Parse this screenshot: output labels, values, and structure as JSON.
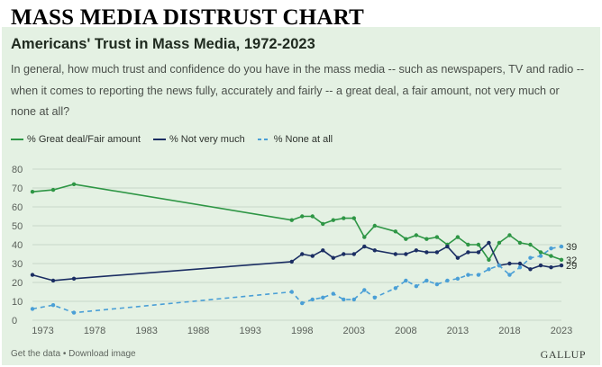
{
  "banner": "MASS MEDIA DISTRUST CHART",
  "footer": {
    "left": "Get the data • Download image",
    "right": "GALLUP"
  },
  "colors": {
    "great_fair": "#2e9645",
    "not_very": "#1b2e63",
    "none": "#4a9fd6",
    "grid": "#c9d8c8",
    "axis_text": "#5a605a",
    "card_bg": "#e4f1e3"
  },
  "chart_data": {
    "type": "line",
    "title": "Americans' Trust in Mass Media, 1972-2023",
    "subtitle": "In general, how much trust and confidence do you have in the mass media -- such as newspapers, TV and radio -- when it comes to reporting the news fully, accurately and fairly -- a great deal, a fair amount, not very much or none at all?",
    "xlabel": "",
    "ylabel": "",
    "xlim": [
      1972,
      2023
    ],
    "ylim": [
      0,
      80
    ],
    "xticks": [
      1973,
      1978,
      1983,
      1988,
      1993,
      1998,
      2003,
      2008,
      2013,
      2018,
      2023
    ],
    "yticks": [
      0,
      10,
      20,
      30,
      40,
      50,
      60,
      70,
      80
    ],
    "grid": true,
    "legend_position": "top-left",
    "series": [
      {
        "name": "% Great deal/Fair amount",
        "color": "#2e9645",
        "dash": "solid",
        "end_label": "32",
        "points": [
          [
            1972,
            68
          ],
          [
            1974,
            69
          ],
          [
            1976,
            72
          ],
          [
            1997,
            53
          ],
          [
            1998,
            55
          ],
          [
            1999,
            55
          ],
          [
            2000,
            51
          ],
          [
            2001,
            53
          ],
          [
            2002,
            54
          ],
          [
            2003,
            54
          ],
          [
            2004,
            44
          ],
          [
            2005,
            50
          ],
          [
            2007,
            47
          ],
          [
            2008,
            43
          ],
          [
            2009,
            45
          ],
          [
            2010,
            43
          ],
          [
            2011,
            44
          ],
          [
            2012,
            40
          ],
          [
            2013,
            44
          ],
          [
            2014,
            40
          ],
          [
            2015,
            40
          ],
          [
            2016,
            32
          ],
          [
            2017,
            41
          ],
          [
            2018,
            45
          ],
          [
            2019,
            41
          ],
          [
            2020,
            40
          ],
          [
            2021,
            36
          ],
          [
            2022,
            34
          ],
          [
            2023,
            32
          ]
        ]
      },
      {
        "name": "% Not very much",
        "color": "#1b2e63",
        "dash": "solid",
        "end_label": "29",
        "points": [
          [
            1972,
            24
          ],
          [
            1974,
            21
          ],
          [
            1976,
            22
          ],
          [
            1997,
            31
          ],
          [
            1998,
            35
          ],
          [
            1999,
            34
          ],
          [
            2000,
            37
          ],
          [
            2001,
            33
          ],
          [
            2002,
            35
          ],
          [
            2003,
            35
          ],
          [
            2004,
            39
          ],
          [
            2005,
            37
          ],
          [
            2007,
            35
          ],
          [
            2008,
            35
          ],
          [
            2009,
            37
          ],
          [
            2010,
            36
          ],
          [
            2011,
            36
          ],
          [
            2012,
            39
          ],
          [
            2013,
            33
          ],
          [
            2014,
            36
          ],
          [
            2015,
            36
          ],
          [
            2016,
            41
          ],
          [
            2017,
            29
          ],
          [
            2018,
            30
          ],
          [
            2019,
            30
          ],
          [
            2020,
            27
          ],
          [
            2021,
            29
          ],
          [
            2022,
            28
          ],
          [
            2023,
            29
          ]
        ]
      },
      {
        "name": "% None at all",
        "color": "#4a9fd6",
        "dash": "dashed",
        "end_label": "39",
        "points": [
          [
            1972,
            6
          ],
          [
            1974,
            8
          ],
          [
            1976,
            4
          ],
          [
            1997,
            15
          ],
          [
            1998,
            9
          ],
          [
            1999,
            11
          ],
          [
            2000,
            12
          ],
          [
            2001,
            14
          ],
          [
            2002,
            11
          ],
          [
            2003,
            11
          ],
          [
            2004,
            16
          ],
          [
            2005,
            12
          ],
          [
            2007,
            17
          ],
          [
            2008,
            21
          ],
          [
            2009,
            18
          ],
          [
            2010,
            21
          ],
          [
            2011,
            19
          ],
          [
            2012,
            21
          ],
          [
            2013,
            22
          ],
          [
            2014,
            24
          ],
          [
            2015,
            24
          ],
          [
            2016,
            27
          ],
          [
            2017,
            29
          ],
          [
            2018,
            24
          ],
          [
            2019,
            28
          ],
          [
            2020,
            33
          ],
          [
            2021,
            34
          ],
          [
            2022,
            38
          ],
          [
            2023,
            39
          ]
        ]
      }
    ]
  }
}
